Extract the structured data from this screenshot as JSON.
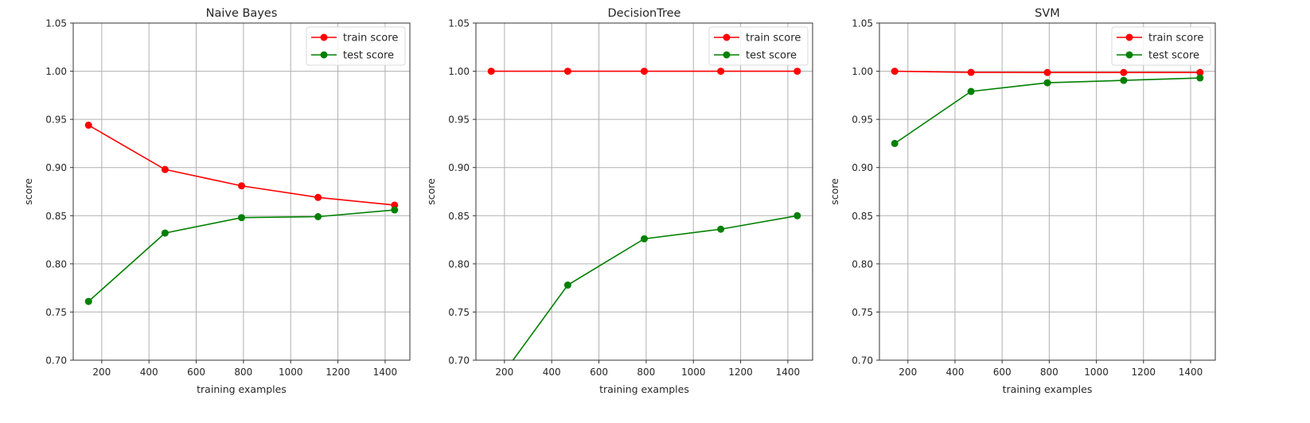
{
  "chart_data": [
    {
      "type": "line",
      "title": "Naive Bayes",
      "xlabel": "training examples",
      "ylabel": "score",
      "xlim": [
        79.2,
        1504.8
      ],
      "ylim": [
        0.7,
        1.05
      ],
      "xticks": [
        200,
        400,
        600,
        800,
        1000,
        1200,
        1400
      ],
      "yticks": [
        "0.70",
        "0.75",
        "0.80",
        "0.85",
        "0.90",
        "0.95",
        "1.00",
        "1.05"
      ],
      "grid": true,
      "legend": "top-right",
      "x": [
        144,
        468,
        792,
        1116,
        1440
      ],
      "series": [
        {
          "name": "train score",
          "color": "#ff0000",
          "values": [
            0.944,
            0.898,
            0.881,
            0.869,
            0.861
          ]
        },
        {
          "name": "test score",
          "color": "#008000",
          "values": [
            0.761,
            0.832,
            0.848,
            0.849,
            0.856
          ]
        }
      ]
    },
    {
      "type": "line",
      "title": "DecisionTree",
      "xlabel": "training examples",
      "ylabel": "score",
      "xlim": [
        79.2,
        1504.8
      ],
      "ylim": [
        0.7,
        1.05
      ],
      "xticks": [
        200,
        400,
        600,
        800,
        1000,
        1200,
        1400
      ],
      "yticks": [
        "0.70",
        "0.75",
        "0.80",
        "0.85",
        "0.90",
        "0.95",
        "1.00",
        "1.05"
      ],
      "grid": true,
      "legend": "top-right",
      "x": [
        144,
        468,
        792,
        1116,
        1440
      ],
      "series": [
        {
          "name": "train score",
          "color": "#ff0000",
          "values": [
            1.0,
            1.0,
            1.0,
            1.0,
            1.0
          ]
        },
        {
          "name": "test score",
          "color": "#008000",
          "values": [
            0.669,
            0.778,
            0.826,
            0.836,
            0.85
          ]
        }
      ]
    },
    {
      "type": "line",
      "title": "SVM",
      "xlabel": "training examples",
      "ylabel": "score",
      "xlim": [
        79.2,
        1504.8
      ],
      "ylim": [
        0.7,
        1.05
      ],
      "xticks": [
        200,
        400,
        600,
        800,
        1000,
        1200,
        1400
      ],
      "yticks": [
        "0.70",
        "0.75",
        "0.80",
        "0.85",
        "0.90",
        "0.95",
        "1.00",
        "1.05"
      ],
      "grid": true,
      "legend": "top-right",
      "x": [
        144,
        468,
        792,
        1116,
        1440
      ],
      "series": [
        {
          "name": "train score",
          "color": "#ff0000",
          "values": [
            1.0,
            0.9988,
            0.9987,
            0.9987,
            0.9987
          ]
        },
        {
          "name": "test score",
          "color": "#008000",
          "values": [
            0.925,
            0.979,
            0.988,
            0.9905,
            0.993
          ]
        }
      ]
    }
  ]
}
